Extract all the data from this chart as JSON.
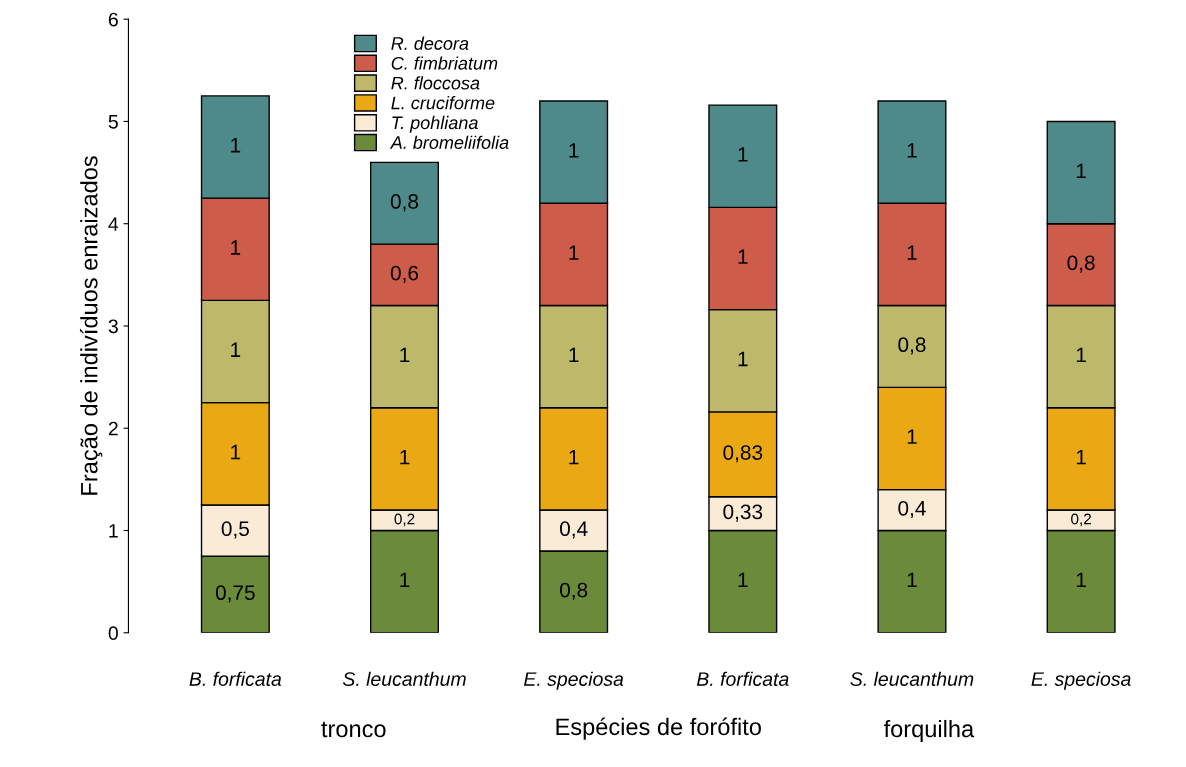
{
  "chart_data": {
    "type": "bar",
    "stacked": true,
    "xlabel": "Espécies de forófito",
    "ylabel": "Fração de indivíduos enraizados",
    "categories": [
      "B. forficata",
      "S. leucanthum",
      "E. speciosa",
      "B. forficata",
      "S. leucanthum",
      "E. speciosa"
    ],
    "series": [
      {
        "name": "A. bromeliifolia",
        "color": "#6b8a3a",
        "values": [
          0.75,
          1,
          0.8,
          1,
          1,
          1
        ],
        "value_labels": [
          "0,75",
          "1",
          "0,8",
          "1",
          "1",
          "1"
        ]
      },
      {
        "name": "T. pohliana",
        "color": "#faebd7",
        "values": [
          0.5,
          0.2,
          0.4,
          0.33,
          0.4,
          0.2
        ],
        "value_labels": [
          "0,5",
          "0,2",
          "0,4",
          "0,33",
          "0,4",
          "0,2"
        ]
      },
      {
        "name": "L. cruciforme",
        "color": "#eaa914",
        "values": [
          1,
          1,
          1,
          0.83,
          1,
          1
        ],
        "value_labels": [
          "1",
          "1",
          "1",
          "0,83",
          "1",
          "1"
        ]
      },
      {
        "name": "R. floccosa",
        "color": "#bdb86a",
        "values": [
          1,
          1,
          1,
          1,
          0.8,
          1
        ],
        "value_labels": [
          "1",
          "1",
          "1",
          "1",
          "0,8",
          "1"
        ]
      },
      {
        "name": "C. fimbriatum",
        "color": "#cd5c4a",
        "values": [
          1,
          0.6,
          1,
          1,
          1,
          0.8
        ],
        "value_labels": [
          "1",
          "0,6",
          "1",
          "1",
          "1",
          "0,8"
        ]
      },
      {
        "name": "R. decora",
        "color": "#4e8a8a",
        "values": [
          1,
          0.8,
          1,
          1,
          1,
          1
        ],
        "value_labels": [
          "1",
          "0,8",
          "1",
          "1",
          "1",
          "1"
        ]
      }
    ],
    "annotations": [
      "tronco",
      "forquilha"
    ],
    "ylim": [
      0,
      6
    ],
    "yticks": [
      0,
      1,
      2,
      3,
      4,
      5,
      6
    ],
    "legend": "top left",
    "grid": false
  }
}
